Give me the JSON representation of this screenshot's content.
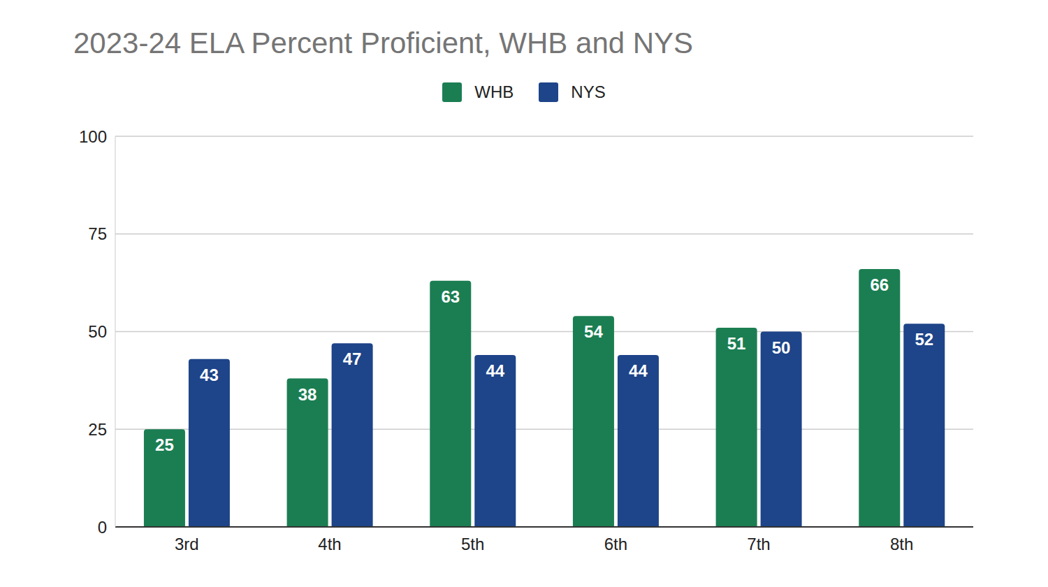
{
  "chart_data": {
    "type": "bar",
    "title": "2023-24 ELA Percent Proficient, WHB and NYS",
    "categories": [
      "3rd",
      "4th",
      "5th",
      "6th",
      "7th",
      "8th"
    ],
    "series": [
      {
        "name": "WHB",
        "color": "#1b7e52",
        "values": [
          25,
          38,
          63,
          54,
          51,
          66
        ]
      },
      {
        "name": "NYS",
        "color": "#1e4489",
        "values": [
          43,
          47,
          44,
          44,
          50,
          52
        ]
      }
    ],
    "ylim": [
      0,
      100
    ],
    "yticks": [
      0,
      25,
      50,
      75,
      100
    ],
    "grid": true,
    "legend": "top",
    "data_labels": true
  }
}
